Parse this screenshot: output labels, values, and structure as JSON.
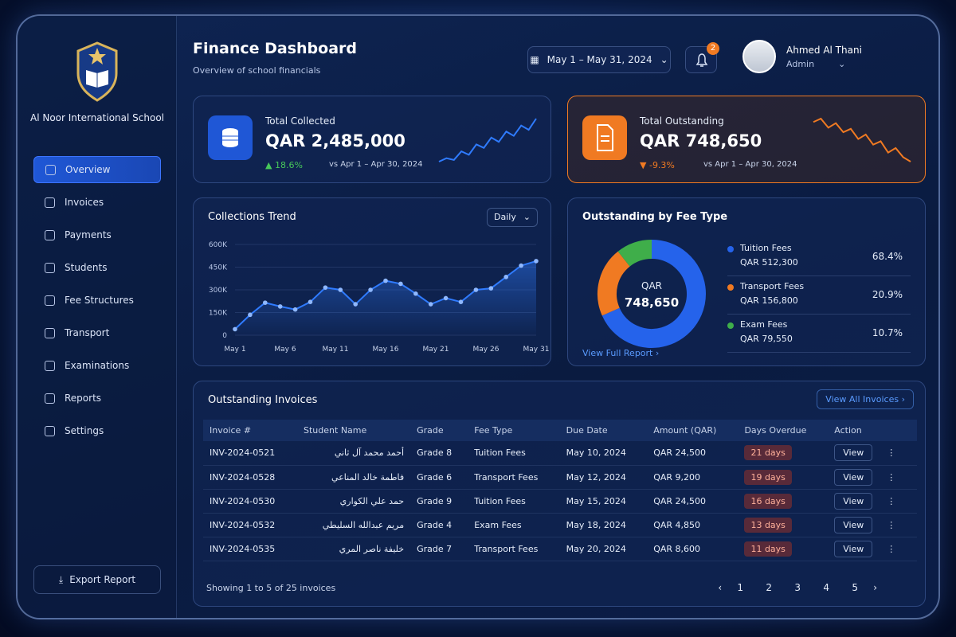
{
  "sidebar": {
    "school_name": "Al Noor International School",
    "nav": [
      "Overview",
      "Invoices",
      "Payments",
      "Students",
      "Fee Structures",
      "Transport",
      "Examinations",
      "Reports",
      "Settings"
    ],
    "export": "Export Report"
  },
  "header": {
    "title": "Finance Dashboard",
    "subtitle": "Overview of school financials",
    "date_range": "May 1 – May 31, 2024",
    "notifications": "2",
    "user_name": "Ahmed Al Thani",
    "user_role": "Admin"
  },
  "kpis": [
    {
      "label": "Total Collected",
      "value": "QAR 2,485,000",
      "change": "18.6%",
      "direction": "up",
      "comparison": "vs Apr 1 – Apr 30, 2024",
      "color": "#2f7bff",
      "sparkline": [
        10,
        14,
        12,
        22,
        18,
        30,
        26,
        38,
        33,
        45,
        40,
        52,
        47,
        60
      ]
    },
    {
      "label": "Total Outstanding",
      "value": "QAR 748,650",
      "change": "-9.3%",
      "direction": "down",
      "comparison": "vs Apr 1 – Apr 30, 2024",
      "color": "#f07a22",
      "sparkline": [
        55,
        58,
        50,
        54,
        46,
        49,
        40,
        44,
        35,
        38,
        28,
        32,
        24,
        20
      ]
    }
  ],
  "collections_trend": {
    "type": "line",
    "title": "Collections Trend",
    "period": "Daily",
    "color": "#2f7bff",
    "x": [
      1,
      2.5,
      4,
      5.5,
      7,
      8.5,
      10,
      11.5,
      13,
      14.5,
      16,
      17.5,
      19,
      20.5,
      22,
      23.5,
      25,
      26.5,
      28,
      29.5,
      31
    ],
    "values": [
      40000,
      135000,
      215000,
      190000,
      170000,
      220000,
      315000,
      300000,
      205000,
      300000,
      360000,
      340000,
      275000,
      205000,
      245000,
      220000,
      300000,
      310000,
      385000,
      460000,
      490000
    ],
    "xlim": [
      1,
      31
    ],
    "xticks": [
      {
        "value": 1,
        "label": "May 1"
      },
      {
        "value": 6,
        "label": "May 6"
      },
      {
        "value": 11,
        "label": "May 11"
      },
      {
        "value": 16,
        "label": "May 16"
      },
      {
        "value": 21,
        "label": "May 21"
      },
      {
        "value": 26,
        "label": "May 26"
      },
      {
        "value": 31,
        "label": "May 31"
      }
    ],
    "ylim": [
      0,
      600000
    ],
    "yticks": [
      0,
      {
        "value": 150000,
        "label": "150K"
      },
      {
        "value": 300000,
        "label": "300K"
      },
      {
        "value": 450000,
        "label": "450K"
      },
      {
        "value": 600000,
        "label": "600K"
      }
    ],
    "grid": true
  },
  "fee_breakdown": {
    "type": "pie",
    "title": "Outstanding by Fee Type",
    "center_label": "QAR",
    "center_value": "748,650",
    "categories": [
      "Tuition Fees",
      "Transport Fees",
      "Exam Fees"
    ],
    "amounts": [
      "QAR 512,300",
      "QAR 156,800",
      "QAR 79,550"
    ],
    "values": [
      68.4,
      20.9,
      10.7
    ],
    "value_labels": [
      "68.4%",
      "20.9%",
      "10.7%"
    ],
    "colors": [
      "#2563eb",
      "#f07a22",
      "#3fae4a"
    ],
    "link": "View Full Report"
  },
  "table": {
    "title": "Outstanding Invoices",
    "link": "View All Invoices",
    "columns": [
      "Invoice #",
      "Student Name",
      "Grade",
      "Fee Type",
      "Due Date",
      "Amount (QAR)",
      "Days Overdue",
      "Action"
    ],
    "rows": [
      [
        "INV-2024-0521",
        "أحمد محمد آل ثاني",
        "Grade 8",
        "Tuition Fees",
        "May 10, 2024",
        "QAR 24,500",
        "21 days",
        "View"
      ],
      [
        "INV-2024-0528",
        "فاطمة خالد المناعي",
        "Grade 6",
        "Transport Fees",
        "May 12, 2024",
        "QAR 9,200",
        "19 days",
        "View"
      ],
      [
        "INV-2024-0530",
        "حمد علي الكواري",
        "Grade 9",
        "Tuition Fees",
        "May 15, 2024",
        "QAR 24,500",
        "16 days",
        "View"
      ],
      [
        "INV-2024-0532",
        "مريم عبدالله السليطي",
        "Grade 4",
        "Exam Fees",
        "May 18, 2024",
        "QAR 4,850",
        "13 days",
        "View"
      ],
      [
        "INV-2024-0535",
        "خليفة ناصر المري",
        "Grade 7",
        "Transport Fees",
        "May 20, 2024",
        "QAR 8,600",
        "11 days",
        "View"
      ]
    ],
    "footer": "Showing 1 to 5 of 25 invoices",
    "pages": [
      "1",
      "2",
      "3",
      "4",
      "5"
    ]
  }
}
